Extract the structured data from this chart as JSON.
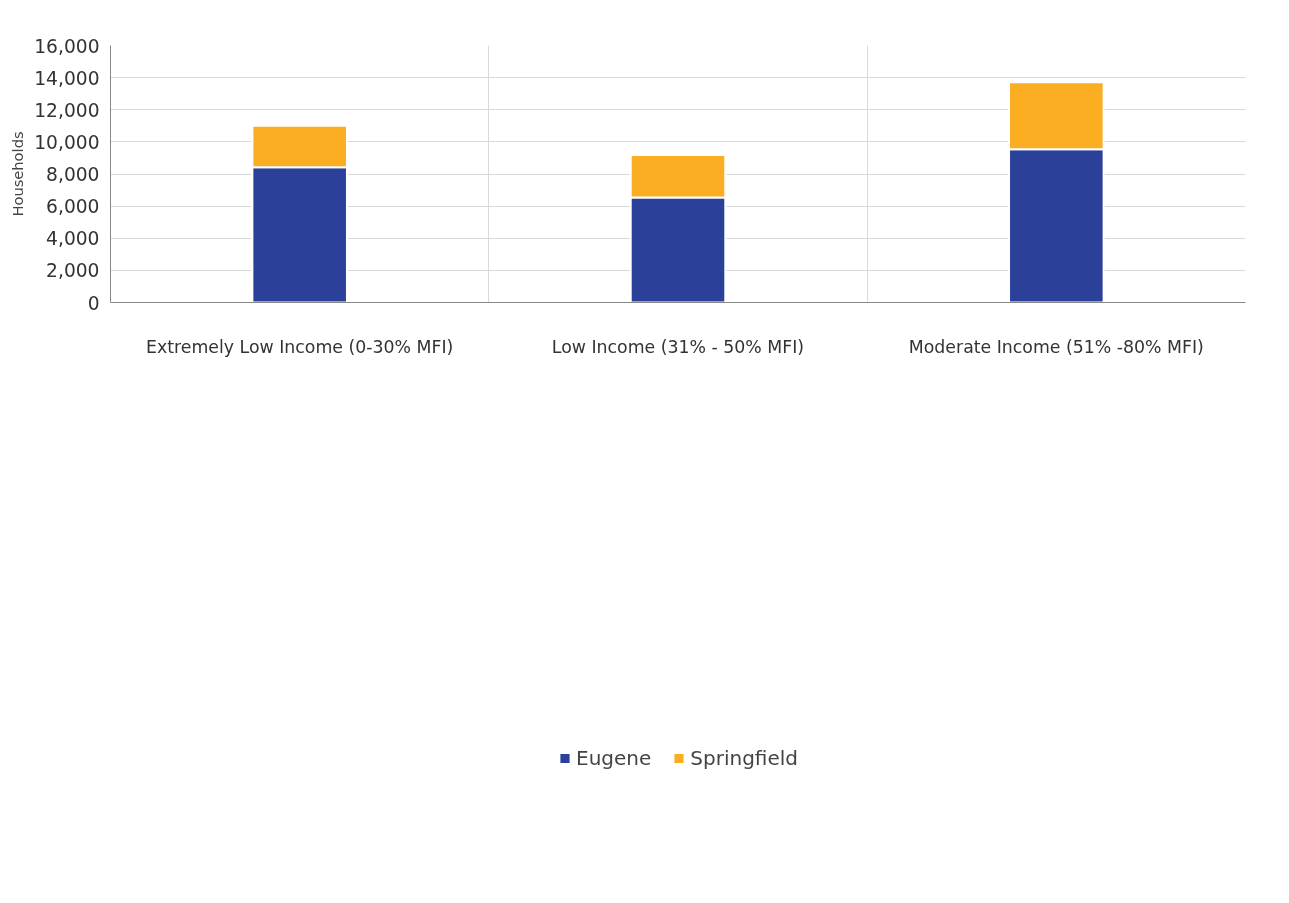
{
  "chart_data": {
    "type": "bar",
    "stacked": true,
    "ylabel": "Households",
    "categories": [
      "Extremely Low Income (0-30% MFI)",
      "Low Income (31% - 50% MFI)",
      "Moderate Income (51% -80% MFI)"
    ],
    "series": [
      {
        "name": "Eugene",
        "color": "#2b4099",
        "values": [
          8420,
          6540,
          9540
        ]
      },
      {
        "name": "Springfield",
        "color": "#fbae22",
        "values": [
          2580,
          2650,
          4170
        ]
      }
    ],
    "ylim": [
      0,
      16000
    ],
    "yticks": [
      {
        "value": 0,
        "label": "0"
      },
      {
        "value": 2000,
        "label": "2,000"
      },
      {
        "value": 4000,
        "label": "4,000"
      },
      {
        "value": 6000,
        "label": "6,000"
      },
      {
        "value": 8000,
        "label": "8,000"
      },
      {
        "value": 10000,
        "label": "10,000"
      },
      {
        "value": 12000,
        "label": "12,000"
      },
      {
        "value": 14000,
        "label": "14,000"
      },
      {
        "value": 16000,
        "label": "16,000"
      }
    ],
    "grid": true,
    "legend": "bottom"
  }
}
